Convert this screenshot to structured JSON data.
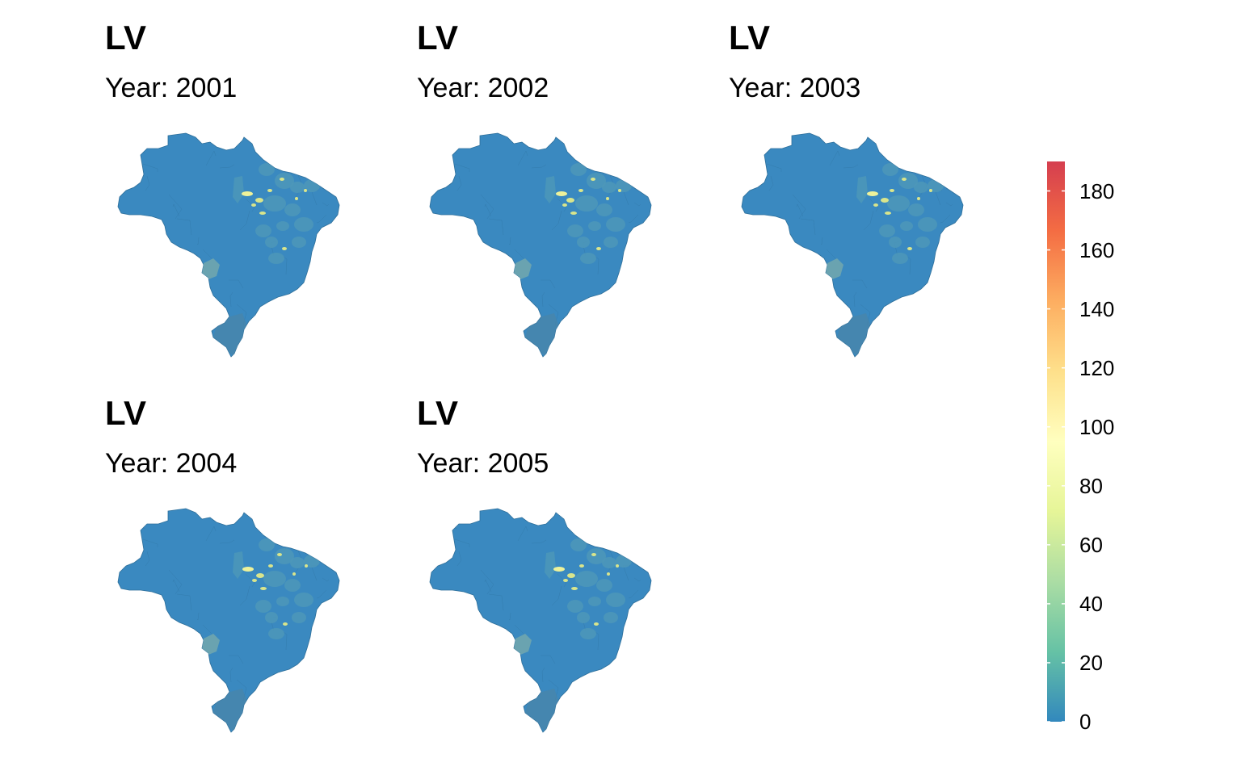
{
  "panels": [
    {
      "title": "LV",
      "subtitle": "Year: 2001"
    },
    {
      "title": "LV",
      "subtitle": "Year: 2002"
    },
    {
      "title": "LV",
      "subtitle": "Year: 2003"
    },
    {
      "title": "LV",
      "subtitle": "Year: 2004"
    },
    {
      "title": "LV",
      "subtitle": "Year: 2005"
    }
  ],
  "legend": {
    "min": 0,
    "max": 190,
    "ticks": [
      {
        "value": 0,
        "label": "0"
      },
      {
        "value": 20,
        "label": "20"
      },
      {
        "value": 40,
        "label": "40"
      },
      {
        "value": 60,
        "label": "60"
      },
      {
        "value": 80,
        "label": "80"
      },
      {
        "value": 100,
        "label": "100"
      },
      {
        "value": 120,
        "label": "120"
      },
      {
        "value": 140,
        "label": "140"
      },
      {
        "value": 160,
        "label": "160"
      },
      {
        "value": 180,
        "label": "180"
      }
    ],
    "colors": [
      "#3288bd",
      "#66c2a5",
      "#abdda4",
      "#e6f598",
      "#ffffbf",
      "#fee08b",
      "#fdae61",
      "#f46d43",
      "#d53e4f"
    ]
  },
  "map_colors": {
    "base": "#3a89c0",
    "border": "#2e6f9a",
    "teal_region": "#6aa3b0",
    "low_region": "#4e98b8",
    "hotspot": "#d9e58c",
    "hotspot_strong": "#eef29a"
  }
}
